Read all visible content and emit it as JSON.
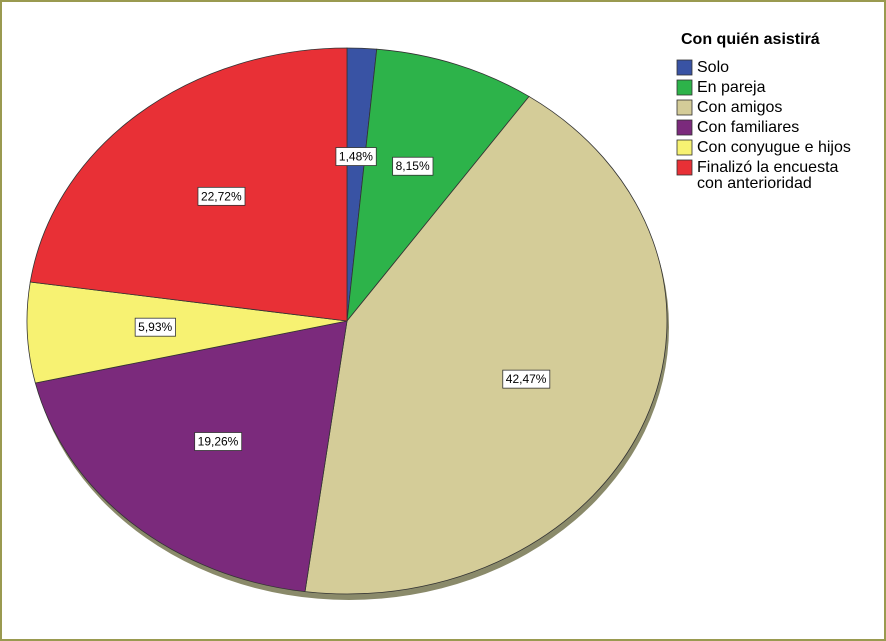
{
  "chart_data": {
    "type": "pie",
    "legend_title": "Con quién asistirá",
    "categories": [
      "Solo",
      "En pareja",
      "Con amigos",
      "Con familiares",
      "Con conyugue e hijos",
      "Finalizó la encuesta con anterioridad"
    ],
    "values": [
      1.48,
      8.15,
      42.47,
      19.26,
      5.93,
      22.72
    ],
    "value_labels": [
      "1,48%",
      "8,15%",
      "42,47%",
      "19,26%",
      "5,93%",
      "22,72%"
    ],
    "colors": [
      "#3953a4",
      "#2db34a",
      "#d4cc98",
      "#7b2a7c",
      "#f7f272",
      "#e83036"
    ],
    "legend": "upper right"
  }
}
